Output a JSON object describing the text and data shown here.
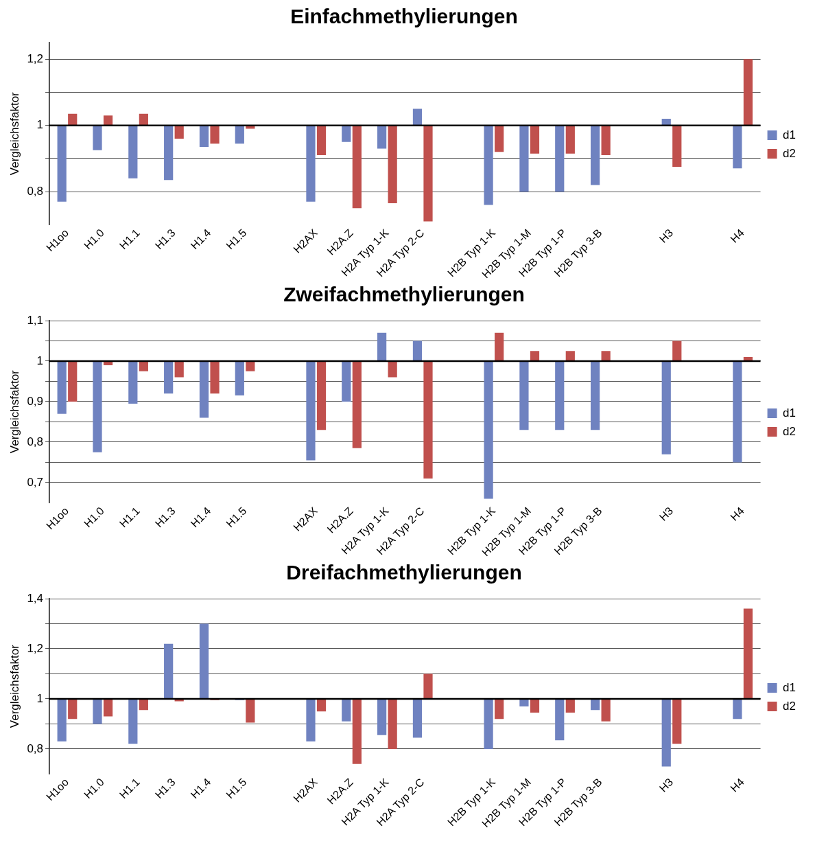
{
  "chart_data": [
    {
      "type": "bar",
      "title": "Einfachmethylierungen",
      "ylabel": "Vergleichsfaktor",
      "categories": [
        "H1oo",
        "H1.0",
        "H1.1",
        "H1.3",
        "H1.4",
        "H1.5",
        null,
        "H2AX",
        "H2A.Z",
        "H2A Typ 1-K",
        "H2A Typ 2-C",
        null,
        "H2B Typ 1-K",
        "H2B Typ 1-M",
        "H2B Typ 1-P",
        "H2B Typ 3-B",
        null,
        "H3",
        null,
        "H4"
      ],
      "series": [
        {
          "name": "d1",
          "color": "#6f82c0",
          "base": [
            1,
            1,
            1,
            1,
            1,
            1,
            null,
            1,
            1,
            1,
            1,
            null,
            1,
            1,
            1,
            1,
            null,
            1,
            null,
            1
          ],
          "values": [
            -0.23,
            -0.075,
            -0.16,
            -0.165,
            -0.065,
            -0.055,
            null,
            -0.23,
            -0.05,
            -0.07,
            0.05,
            null,
            -0.24,
            -0.2,
            -0.2,
            -0.18,
            null,
            0.02,
            null,
            -0.13
          ]
        },
        {
          "name": "d2",
          "color": "#c0504d",
          "base": [
            1,
            1,
            1,
            1,
            1,
            1,
            null,
            1,
            1,
            1,
            1,
            null,
            1,
            1,
            1,
            1,
            null,
            1,
            null,
            1
          ],
          "values": [
            0.035,
            0.03,
            0.035,
            -0.04,
            -0.055,
            -0.01,
            null,
            -0.09,
            -0.25,
            -0.235,
            -0.29,
            null,
            -0.08,
            -0.085,
            -0.085,
            -0.09,
            null,
            -0.125,
            null,
            0.2
          ]
        }
      ],
      "ylim": [
        0.7,
        1.25
      ],
      "yticks": [
        {
          "value": 0.8,
          "label": "0,8"
        },
        {
          "value": 0.9,
          "label": null
        },
        {
          "value": 1,
          "label": "1"
        },
        {
          "value": 1.1,
          "label": null
        },
        {
          "value": 1.2,
          "label": "1,2"
        }
      ],
      "grid": "y",
      "legend": "right",
      "ref_lines": [
        {
          "axis": "y",
          "value": 1,
          "color": "#000000"
        }
      ]
    },
    {
      "type": "bar",
      "title": "Zweifachmethylierungen",
      "ylabel": "Vergleichsfaktor",
      "categories": [
        "H1oo",
        "H1.0",
        "H1.1",
        "H1.3",
        "H1.4",
        "H1.5",
        null,
        "H2AX",
        "H2A.Z",
        "H2A Typ 1-K",
        "H2A Typ 2-C",
        null,
        "H2B Typ 1-K",
        "H2B Typ 1-M",
        "H2B Typ 1-P",
        "H2B Typ 3-B",
        null,
        "H3",
        null,
        "H4"
      ],
      "series": [
        {
          "name": "d1",
          "color": "#6f82c0",
          "base": [
            1,
            1,
            1,
            1,
            1,
            1,
            null,
            1,
            1,
            1,
            1,
            null,
            1,
            1,
            1,
            1,
            null,
            1,
            null,
            1
          ],
          "values": [
            -0.13,
            -0.225,
            -0.105,
            -0.08,
            -0.14,
            -0.085,
            null,
            -0.245,
            -0.1,
            0.07,
            0.05,
            null,
            -0.34,
            -0.17,
            -0.17,
            -0.17,
            null,
            -0.23,
            null,
            -0.25
          ]
        },
        {
          "name": "d2",
          "color": "#c0504d",
          "base": [
            1,
            1,
            1,
            1,
            1,
            1,
            null,
            1,
            1,
            1,
            1,
            null,
            1,
            1,
            1,
            1,
            null,
            1,
            null,
            1
          ],
          "values": [
            -0.1,
            -0.01,
            -0.025,
            -0.04,
            -0.08,
            -0.025,
            null,
            -0.17,
            -0.215,
            -0.04,
            -0.29,
            null,
            0.07,
            0.025,
            0.025,
            0.025,
            null,
            0.05,
            null,
            0.01
          ]
        }
      ],
      "ylim": [
        0.65,
        1.1
      ],
      "yticks": [
        {
          "value": 0.7,
          "label": "0,7"
        },
        {
          "value": 0.75,
          "label": null
        },
        {
          "value": 0.8,
          "label": "0,8"
        },
        {
          "value": 0.85,
          "label": null
        },
        {
          "value": 0.9,
          "label": "0,9"
        },
        {
          "value": 0.95,
          "label": null
        },
        {
          "value": 1,
          "label": "1"
        },
        {
          "value": 1.05,
          "label": null
        },
        {
          "value": 1.1,
          "label": "1,1"
        }
      ],
      "grid": "y",
      "legend": "right",
      "ref_lines": [
        {
          "axis": "y",
          "value": 1,
          "color": "#000000"
        }
      ]
    },
    {
      "type": "bar",
      "title": "Dreifachmethylierungen",
      "ylabel": "Vergleichsfaktor",
      "categories": [
        "H1oo",
        "H1.0",
        "H1.1",
        "H1.3",
        "H1.4",
        "H1.5",
        null,
        "H2AX",
        "H2A.Z",
        "H2A Typ 1-K",
        "H2A Typ 2-C",
        null,
        "H2B Typ 1-K",
        "H2B Typ 1-M",
        "H2B Typ 1-P",
        "H2B Typ 3-B",
        null,
        "H3",
        null,
        "H4"
      ],
      "series": [
        {
          "name": "d1",
          "color": "#6f82c0",
          "base": [
            1,
            1,
            1,
            1,
            1,
            1,
            null,
            1,
            1,
            1,
            1,
            null,
            1,
            1,
            1,
            1,
            null,
            1,
            null,
            1
          ],
          "values": [
            -0.17,
            -0.1,
            -0.18,
            0.22,
            0.3,
            -0.005,
            null,
            -0.17,
            -0.09,
            -0.145,
            -0.155,
            null,
            -0.2,
            -0.03,
            -0.165,
            -0.045,
            null,
            -0.27,
            null,
            -0.08
          ]
        },
        {
          "name": "d2",
          "color": "#c0504d",
          "base": [
            1,
            1,
            1,
            1,
            1,
            1,
            null,
            1,
            1,
            1,
            1,
            null,
            1,
            1,
            1,
            1,
            null,
            1,
            null,
            1
          ],
          "values": [
            -0.08,
            -0.07,
            -0.045,
            -0.01,
            -0.005,
            -0.095,
            null,
            -0.05,
            -0.26,
            -0.2,
            0.1,
            null,
            -0.08,
            -0.055,
            -0.055,
            -0.09,
            null,
            -0.18,
            null,
            0.36
          ]
        }
      ],
      "ylim": [
        0.7,
        1.4
      ],
      "yticks": [
        {
          "value": 0.8,
          "label": "0,8"
        },
        {
          "value": 0.9,
          "label": null
        },
        {
          "value": 1,
          "label": "1"
        },
        {
          "value": 1.1,
          "label": null
        },
        {
          "value": 1.2,
          "label": "1,2"
        },
        {
          "value": 1.3,
          "label": null
        },
        {
          "value": 1.4,
          "label": "1,4"
        }
      ],
      "grid": "y",
      "legend": "right",
      "ref_lines": [
        {
          "axis": "y",
          "value": 1,
          "color": "#000000"
        }
      ]
    }
  ]
}
